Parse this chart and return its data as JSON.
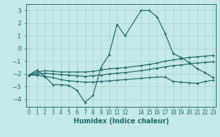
{
  "xlabel": "Humidex (Indice chaleur)",
  "bg_color": "#c5e8e8",
  "line_color": "#1a6b6b",
  "grid_color": "#a8cdcd",
  "xlim": [
    -0.3,
    23.3
  ],
  "ylim": [
    -4.6,
    3.5
  ],
  "yticks": [
    -4,
    -3,
    -2,
    -1,
    0,
    1,
    2,
    3
  ],
  "xtick_pos": [
    0,
    1,
    2,
    3,
    4,
    5,
    6,
    7,
    8,
    9,
    10,
    11,
    12,
    14,
    15,
    16,
    17,
    18,
    19,
    20,
    21,
    22,
    23
  ],
  "xtick_labels": [
    "0",
    "1",
    "2",
    "3",
    "4",
    "5",
    "6",
    "7",
    "8",
    "9",
    "10",
    "11",
    "12",
    "14",
    "15",
    "16",
    "17",
    "18",
    "19",
    "20",
    "21",
    "22",
    "23"
  ],
  "curve1_x": [
    0,
    1,
    2,
    3,
    4,
    5,
    6,
    7,
    8,
    9,
    10,
    11,
    12,
    14,
    15,
    16,
    17,
    18,
    19,
    20,
    21,
    22,
    23
  ],
  "curve1_y": [
    -2.1,
    -1.7,
    -2.2,
    -2.85,
    -2.85,
    -2.9,
    -3.3,
    -4.25,
    -3.7,
    -1.5,
    -0.5,
    1.9,
    1.0,
    3.0,
    3.0,
    2.5,
    1.2,
    -0.4,
    -0.7,
    -1.1,
    -1.6,
    -1.9,
    -2.3
  ],
  "curve2_x": [
    0,
    1,
    2,
    3,
    4,
    5,
    6,
    7,
    8,
    9,
    10,
    11,
    12,
    14,
    15,
    16,
    17,
    18,
    19,
    20,
    21,
    22,
    23
  ],
  "curve2_y": [
    -2.1,
    -1.85,
    -1.75,
    -1.8,
    -1.85,
    -1.85,
    -1.85,
    -1.85,
    -1.8,
    -1.7,
    -1.6,
    -1.55,
    -1.5,
    -1.35,
    -1.25,
    -1.15,
    -1.0,
    -0.9,
    -0.8,
    -0.7,
    -0.65,
    -0.6,
    -0.55
  ],
  "curve3_x": [
    0,
    1,
    2,
    3,
    4,
    5,
    6,
    7,
    8,
    9,
    10,
    11,
    12,
    14,
    15,
    16,
    17,
    18,
    19,
    20,
    21,
    22,
    23
  ],
  "curve3_y": [
    -2.1,
    -2.0,
    -1.95,
    -2.0,
    -2.05,
    -2.1,
    -2.15,
    -2.2,
    -2.15,
    -2.1,
    -2.0,
    -1.95,
    -1.9,
    -1.75,
    -1.65,
    -1.55,
    -1.45,
    -1.35,
    -1.3,
    -1.2,
    -1.15,
    -1.1,
    -1.05
  ],
  "curve4_x": [
    0,
    1,
    2,
    3,
    4,
    5,
    6,
    7,
    8,
    9,
    10,
    11,
    12,
    14,
    15,
    16,
    17,
    18,
    19,
    20,
    21,
    22,
    23
  ],
  "curve4_y": [
    -2.1,
    -2.1,
    -2.2,
    -2.3,
    -2.45,
    -2.55,
    -2.6,
    -2.65,
    -2.65,
    -2.6,
    -2.55,
    -2.5,
    -2.45,
    -2.35,
    -2.3,
    -2.25,
    -2.25,
    -2.6,
    -2.65,
    -2.7,
    -2.75,
    -2.6,
    -2.5
  ]
}
